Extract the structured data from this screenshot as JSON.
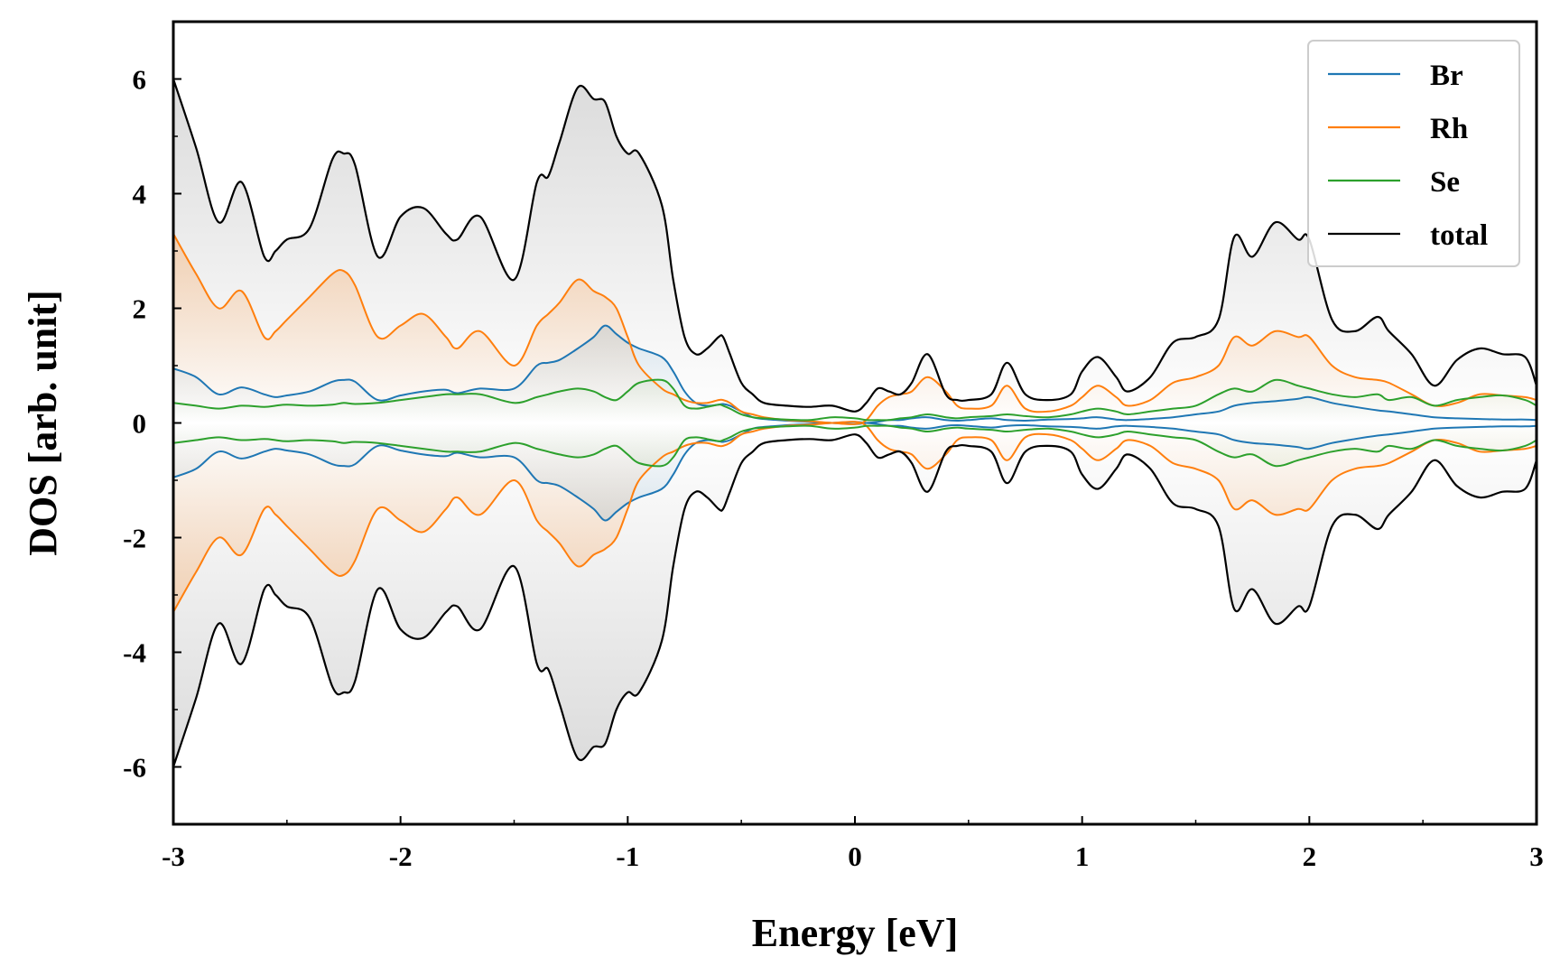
{
  "chart_data": {
    "type": "line",
    "title": "",
    "xlabel": "Energy [eV]",
    "ylabel": "DOS [arb. unit]",
    "xlim": [
      -3,
      3
    ],
    "ylim": [
      -7,
      7
    ],
    "xticks": [
      -3,
      -2,
      -1,
      0,
      1,
      2,
      3
    ],
    "xtick_labels": [
      "-3",
      "-2",
      "-1",
      "0",
      "1",
      "2",
      "3"
    ],
    "yticks": [
      -6,
      -4,
      -2,
      0,
      2,
      4,
      6
    ],
    "ytick_labels": [
      "-6",
      "-4",
      "-2",
      "0",
      "2",
      "4",
      "6"
    ],
    "mirrored": true,
    "legend_position": "top-right",
    "x": [
      -3.0,
      -2.9,
      -2.8,
      -2.7,
      -2.6,
      -2.55,
      -2.5,
      -2.4,
      -2.3,
      -2.25,
      -2.2,
      -2.1,
      -2.0,
      -1.9,
      -1.8,
      -1.75,
      -1.65,
      -1.5,
      -1.4,
      -1.35,
      -1.3,
      -1.22,
      -1.15,
      -1.1,
      -1.05,
      -1.0,
      -0.95,
      -0.85,
      -0.8,
      -0.75,
      -0.7,
      -0.65,
      -0.6,
      -0.58,
      -0.55,
      -0.5,
      -0.45,
      -0.4,
      -0.3,
      -0.2,
      -0.1,
      0.0,
      0.05,
      0.1,
      0.15,
      0.2,
      0.25,
      0.32,
      0.4,
      0.45,
      0.5,
      0.6,
      0.67,
      0.75,
      0.85,
      0.95,
      1.0,
      1.07,
      1.15,
      1.2,
      1.3,
      1.4,
      1.5,
      1.6,
      1.67,
      1.75,
      1.85,
      1.95,
      2.0,
      2.1,
      2.2,
      2.3,
      2.35,
      2.45,
      2.55,
      2.65,
      2.75,
      2.85,
      2.95,
      3.0
    ],
    "series": [
      {
        "name": "Br",
        "color": "#1f77b4",
        "values": [
          0.95,
          0.8,
          0.5,
          0.62,
          0.5,
          0.45,
          0.48,
          0.55,
          0.72,
          0.75,
          0.72,
          0.4,
          0.48,
          0.55,
          0.58,
          0.52,
          0.6,
          0.6,
          1.0,
          1.05,
          1.1,
          1.3,
          1.5,
          1.7,
          1.55,
          1.4,
          1.3,
          1.15,
          0.9,
          0.55,
          0.35,
          0.3,
          0.32,
          0.33,
          0.3,
          0.2,
          0.1,
          0.07,
          0.04,
          0.02,
          0.0,
          -0.02,
          0.0,
          0.02,
          0.05,
          0.05,
          0.08,
          0.1,
          0.05,
          0.04,
          0.05,
          0.08,
          0.05,
          0.04,
          0.06,
          0.07,
          0.08,
          0.1,
          0.06,
          0.05,
          0.07,
          0.1,
          0.15,
          0.2,
          0.3,
          0.35,
          0.38,
          0.42,
          0.45,
          0.35,
          0.28,
          0.22,
          0.2,
          0.15,
          0.1,
          0.08,
          0.07,
          0.06,
          0.06,
          0.05
        ]
      },
      {
        "name": "Rh",
        "color": "#ff7f0e",
        "values": [
          3.3,
          2.6,
          2.0,
          2.3,
          1.5,
          1.6,
          1.8,
          2.2,
          2.6,
          2.65,
          2.4,
          1.5,
          1.7,
          1.9,
          1.5,
          1.3,
          1.6,
          1.0,
          1.7,
          1.9,
          2.1,
          2.5,
          2.3,
          2.2,
          2.0,
          1.5,
          1.0,
          0.6,
          0.5,
          0.4,
          0.35,
          0.35,
          0.4,
          0.4,
          0.35,
          0.2,
          0.15,
          0.1,
          0.05,
          0.03,
          0.0,
          -0.02,
          0.05,
          0.3,
          0.45,
          0.5,
          0.55,
          0.8,
          0.55,
          0.3,
          0.25,
          0.3,
          0.65,
          0.25,
          0.2,
          0.3,
          0.45,
          0.65,
          0.45,
          0.3,
          0.4,
          0.7,
          0.8,
          1.0,
          1.5,
          1.35,
          1.6,
          1.5,
          1.5,
          1.0,
          0.8,
          0.75,
          0.7,
          0.5,
          0.3,
          0.35,
          0.5,
          0.48,
          0.45,
          0.4
        ]
      },
      {
        "name": "Se",
        "color": "#2ca02c",
        "values": [
          0.35,
          0.3,
          0.25,
          0.3,
          0.28,
          0.3,
          0.32,
          0.3,
          0.32,
          0.35,
          0.33,
          0.35,
          0.4,
          0.45,
          0.5,
          0.5,
          0.5,
          0.35,
          0.45,
          0.5,
          0.55,
          0.6,
          0.55,
          0.45,
          0.4,
          0.55,
          0.7,
          0.75,
          0.6,
          0.3,
          0.25,
          0.28,
          0.32,
          0.3,
          0.25,
          0.15,
          0.1,
          0.08,
          0.06,
          0.05,
          0.1,
          0.08,
          0.05,
          0.05,
          0.05,
          0.08,
          0.1,
          0.15,
          0.1,
          0.08,
          0.1,
          0.12,
          0.15,
          0.12,
          0.1,
          0.15,
          0.2,
          0.25,
          0.2,
          0.15,
          0.2,
          0.25,
          0.3,
          0.5,
          0.6,
          0.55,
          0.75,
          0.65,
          0.6,
          0.5,
          0.45,
          0.5,
          0.4,
          0.45,
          0.3,
          0.4,
          0.45,
          0.48,
          0.4,
          0.3
        ]
      },
      {
        "name": "total",
        "color": "#000000",
        "values": [
          6.0,
          4.8,
          3.5,
          4.2,
          2.9,
          3.0,
          3.2,
          3.4,
          4.6,
          4.7,
          4.5,
          2.9,
          3.6,
          3.75,
          3.3,
          3.2,
          3.6,
          2.5,
          4.2,
          4.3,
          4.9,
          5.85,
          5.65,
          5.6,
          5.0,
          4.7,
          4.7,
          3.8,
          2.5,
          1.5,
          1.2,
          1.3,
          1.5,
          1.5,
          1.2,
          0.7,
          0.5,
          0.35,
          0.3,
          0.28,
          0.3,
          0.2,
          0.35,
          0.6,
          0.55,
          0.5,
          0.7,
          1.2,
          0.5,
          0.4,
          0.4,
          0.5,
          1.05,
          0.5,
          0.4,
          0.5,
          0.9,
          1.15,
          0.8,
          0.55,
          0.8,
          1.4,
          1.5,
          1.8,
          3.25,
          2.9,
          3.5,
          3.2,
          3.2,
          1.8,
          1.6,
          1.85,
          1.6,
          1.2,
          0.65,
          1.1,
          1.3,
          1.2,
          1.15,
          0.65
        ]
      }
    ]
  }
}
